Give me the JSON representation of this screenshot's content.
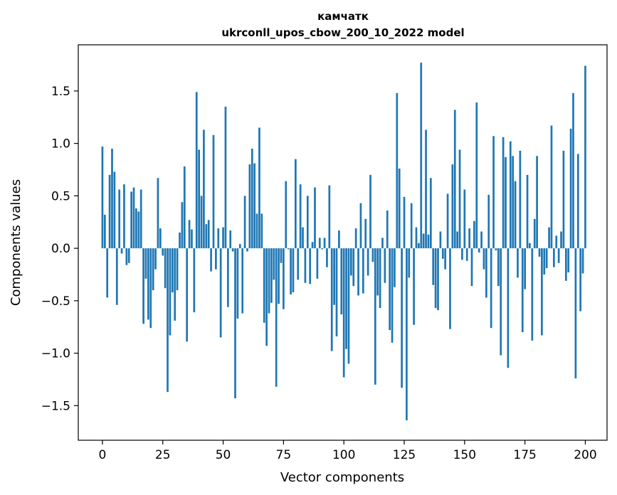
{
  "chart_data": {
    "type": "bar",
    "title": "камчатк",
    "subtitle": "ukrconll_upos_cbow_200_10_2022 model",
    "xlabel": "Vector components",
    "ylabel": "Components values",
    "xlim": [
      -10,
      209
    ],
    "ylim": [
      -1.83,
      1.94
    ],
    "xticks": [
      0,
      25,
      50,
      75,
      100,
      125,
      150,
      175,
      200
    ],
    "yticks": [
      -1.5,
      -1.0,
      -0.5,
      0.0,
      0.5,
      1.0,
      1.5
    ],
    "ytick_labels": [
      "−1.5",
      "−1.0",
      "−0.5",
      "0.0",
      "0.5",
      "1.0",
      "1.5"
    ],
    "grid": false,
    "bar_color": "#1f77b4",
    "values": [
      0.97,
      0.32,
      -0.47,
      0.7,
      0.95,
      0.73,
      -0.54,
      0.56,
      -0.05,
      0.61,
      -0.16,
      -0.14,
      0.54,
      0.58,
      0.38,
      0.35,
      0.56,
      -0.72,
      -0.29,
      -0.68,
      -0.76,
      -0.4,
      -0.2,
      0.67,
      0.19,
      -0.07,
      -0.38,
      -1.37,
      -0.83,
      -0.42,
      -0.69,
      -0.4,
      0.15,
      0.44,
      0.78,
      -0.89,
      0.27,
      0.18,
      -0.61,
      1.49,
      0.94,
      0.5,
      1.13,
      0.23,
      0.27,
      -0.22,
      1.08,
      -0.2,
      0.19,
      -0.85,
      0.2,
      1.35,
      -0.56,
      0.17,
      -0.03,
      -1.43,
      -0.67,
      0.04,
      -0.62,
      0.5,
      -0.03,
      0.8,
      0.95,
      0.81,
      0.33,
      1.15,
      0.33,
      -0.71,
      -0.93,
      -0.62,
      -0.52,
      -0.3,
      -1.32,
      -0.53,
      -0.14,
      -0.58,
      0.64,
      -0.01,
      -0.44,
      -0.42,
      0.85,
      -0.3,
      0.61,
      0.2,
      -0.33,
      0.5,
      -0.34,
      0.06,
      0.58,
      -0.29,
      0.1,
      -0.01,
      0.1,
      -0.18,
      0.6,
      -0.98,
      -0.54,
      -0.84,
      0.17,
      -0.63,
      -1.23,
      -0.96,
      -1.1,
      -0.26,
      -0.36,
      0.19,
      -0.45,
      0.43,
      -0.43,
      0.28,
      -0.26,
      0.7,
      -0.13,
      -1.3,
      -0.45,
      -0.57,
      0.1,
      -0.33,
      0.36,
      -0.78,
      -0.9,
      -0.37,
      1.48,
      0.76,
      -1.33,
      0.49,
      -1.64,
      -0.28,
      0.43,
      -0.73,
      0.2,
      0.05,
      1.77,
      0.14,
      1.13,
      0.13,
      0.67,
      -0.35,
      -0.57,
      -0.59,
      0.16,
      -0.1,
      -0.2,
      0.52,
      -0.77,
      0.8,
      1.32,
      0.16,
      0.94,
      -0.11,
      0.56,
      -0.12,
      0.19,
      -0.36,
      0.26,
      1.39,
      -0.04,
      0.16,
      -0.2,
      -0.47,
      0.51,
      -0.76,
      1.07,
      -0.02,
      -0.36,
      -1.02,
      1.06,
      0.87,
      -1.14,
      1.02,
      0.88,
      0.64,
      -0.28,
      0.93,
      -0.8,
      -0.39,
      0.7,
      0.05,
      -0.88,
      0.28,
      0.88,
      -0.08,
      -0.83,
      -0.25,
      -0.19,
      0.2,
      1.17,
      -0.18,
      0.12,
      -0.14,
      0.16,
      0.93,
      -0.31,
      -0.23,
      1.14,
      1.48,
      -1.24,
      0.9,
      -0.6,
      -0.24,
      1.74
    ]
  }
}
